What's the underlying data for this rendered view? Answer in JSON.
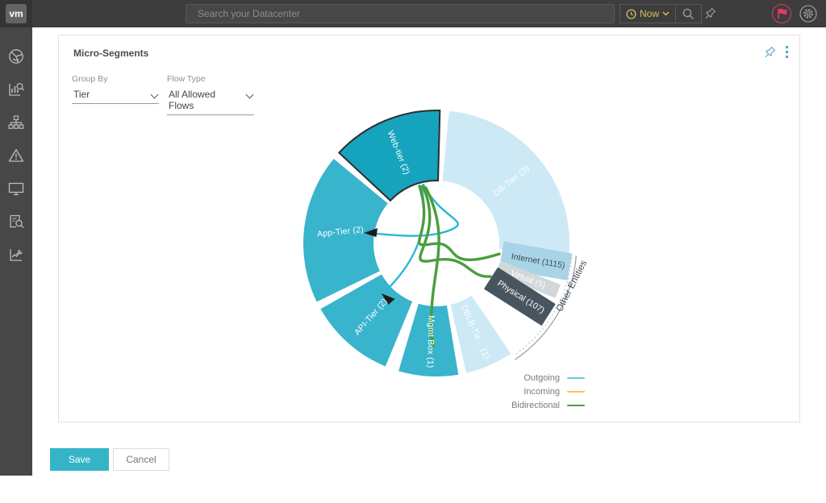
{
  "topbar": {
    "logo_text": "vm",
    "search_placeholder": "Search your Datacenter",
    "time_selector_label": "Now"
  },
  "sidebar": {
    "items": [
      "dashboard-donut",
      "analytics-search",
      "topology",
      "alerts",
      "desktop",
      "audit-search",
      "pinned-charts"
    ]
  },
  "panel": {
    "title": "Micro-Segments",
    "group_by_label": "Group By",
    "group_by_value": "Tier",
    "flow_type_label": "Flow Type",
    "flow_type_value": "All Allowed Flows"
  },
  "footer": {
    "save_label": "Save",
    "cancel_label": "Cancel"
  },
  "colors": {
    "accent_teal": "#35b4c8",
    "selected_segment": "#16a3bd",
    "segment_teal": "#38b4cc",
    "segment_light": "#cde9f5",
    "flag_pink": "#e23a62",
    "now_yellow": "#d6bf5e"
  },
  "chart_data": {
    "type": "donut-flow",
    "title": "Micro-Segments",
    "grouping": "Tier",
    "flow_filter": "All Allowed Flows",
    "segments": [
      {
        "name": "Web-tier",
        "count": 2,
        "label": "Web-tier (2)",
        "start": -47,
        "end": 1.5,
        "color": "#16a3bd",
        "selected": true
      },
      {
        "name": "DB-Tier",
        "count": 3,
        "label": "DB-Tier (3)",
        "start": 5.5,
        "end": 95,
        "color": "#cde9f5",
        "selected": false
      },
      {
        "name": "DBLB-Tier",
        "count": 1,
        "label": "DBLB-Tie... (1)",
        "start": 146,
        "end": 167,
        "color": "#cde9f5",
        "selected": false
      },
      {
        "name": "Mgmt Box",
        "count": 1,
        "label": "Mgmt Box (1)",
        "start": 170.5,
        "end": 196.5,
        "color": "#38b4cc",
        "selected": false
      },
      {
        "name": "API-Tier",
        "count": 2,
        "label": "API-Tier (2)",
        "start": 202.5,
        "end": 240.5,
        "color": "#38b4cc",
        "selected": false
      },
      {
        "name": "App-Tier",
        "count": 2,
        "label": "App-Tier (2)",
        "start": 244,
        "end": 309.5,
        "color": "#38b4cc",
        "selected": false
      }
    ],
    "other_entities": {
      "group_label": "Other Entities",
      "bars": [
        {
          "name": "Internet",
          "count": 1115,
          "label": "Internet (1115)",
          "angle": 100,
          "color": "#a9d4e7",
          "text_color": "#3c4c57"
        },
        {
          "name": "Virtual",
          "count": 5,
          "label": "Virtual (5)",
          "angle": 111.5,
          "color": "#d2d8da",
          "text_color": "#ffffff"
        },
        {
          "name": "Physical",
          "count": 107,
          "label": "Physical (107)",
          "angle": 122.5,
          "color": "#48555f",
          "text_color": "#ffffff"
        }
      ]
    },
    "flows": [
      {
        "type": "outgoing",
        "from": "Web-tier",
        "to": "App-Tier"
      },
      {
        "type": "outgoing",
        "from": "Web-tier",
        "to": "API-Tier"
      },
      {
        "type": "bidirectional",
        "from": "Web-tier",
        "to": "Internet"
      },
      {
        "type": "bidirectional",
        "from": "Web-tier",
        "to": "Physical"
      },
      {
        "type": "bidirectional",
        "from": "Web-tier",
        "to": "Mgmt Box"
      }
    ],
    "legend": [
      {
        "label": "Outgoing",
        "color": "#6ecadf"
      },
      {
        "label": "Incoming",
        "color": "#eec45f"
      },
      {
        "label": "Bidirectional",
        "color": "#4a9e3f"
      }
    ],
    "legend_position": "bottom-right"
  }
}
